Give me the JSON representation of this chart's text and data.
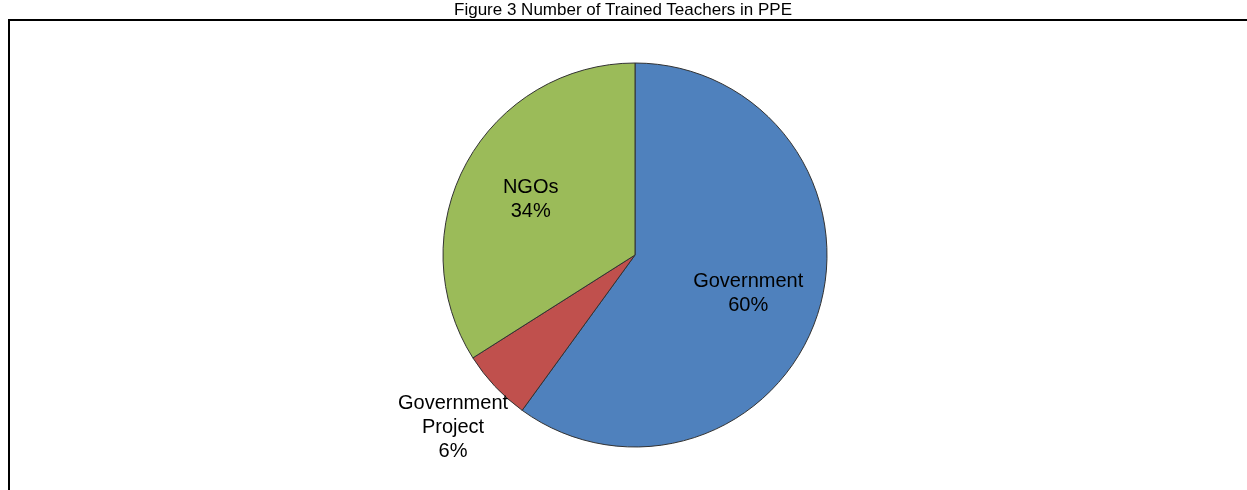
{
  "chart_data": {
    "type": "pie",
    "title": "Figure 3 Number of Trained Teachers in PPE",
    "categories": [
      "Government",
      "Government Project",
      "NGOs"
    ],
    "values": [
      60,
      6,
      34
    ],
    "value_labels": [
      "60%",
      "6%",
      "34%"
    ],
    "colors": [
      "#4f81bd",
      "#c0504d",
      "#9bbb59"
    ]
  }
}
